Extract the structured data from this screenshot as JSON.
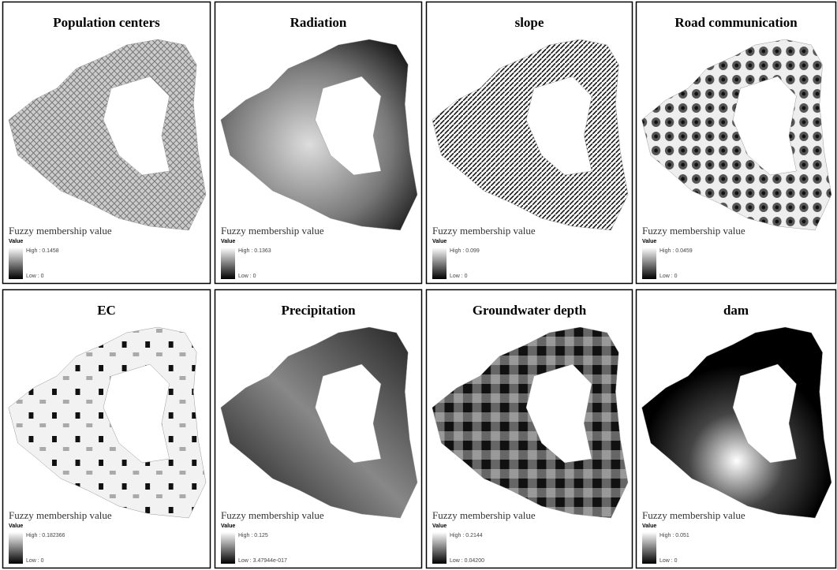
{
  "panels": [
    {
      "title": "Population centers",
      "legend": {
        "title": "Fuzzy membership value",
        "field": "Value",
        "high": "High : 0.1458",
        "low": "Low : 0"
      }
    },
    {
      "title": "Radiation",
      "legend": {
        "title": "Fuzzy membership value",
        "field": "Value",
        "high": "High : 0.1363",
        "low": "Low : 0"
      }
    },
    {
      "title": "slope",
      "legend": {
        "title": "Fuzzy membership value",
        "field": "Value",
        "high": "High : 0.099",
        "low": "Low : 0"
      }
    },
    {
      "title": "Road communication",
      "legend": {
        "title": "Fuzzy membership value",
        "field": "Value",
        "high": "High : 0.0459",
        "low": "Low : 0"
      }
    },
    {
      "title": "EC",
      "legend": {
        "title": "Fuzzy membership value",
        "field": "Value",
        "high": "High : 0.182366",
        "low": "Low : 0"
      }
    },
    {
      "title": "Precipitation",
      "legend": {
        "title": "Fuzzy membership value",
        "field": "Value",
        "high": "High : 0.125",
        "low": "Low : 3.47944e-017"
      }
    },
    {
      "title": "Groundwater depth",
      "legend": {
        "title": "Fuzzy membership value",
        "field": "Value",
        "high": "High : 0.2144",
        "low": "Low : 0.04200"
      }
    },
    {
      "title": "dam",
      "legend": {
        "title": "Fuzzy membership value",
        "field": "Value",
        "high": "High : 0.051",
        "low": "Low : 0"
      }
    }
  ]
}
